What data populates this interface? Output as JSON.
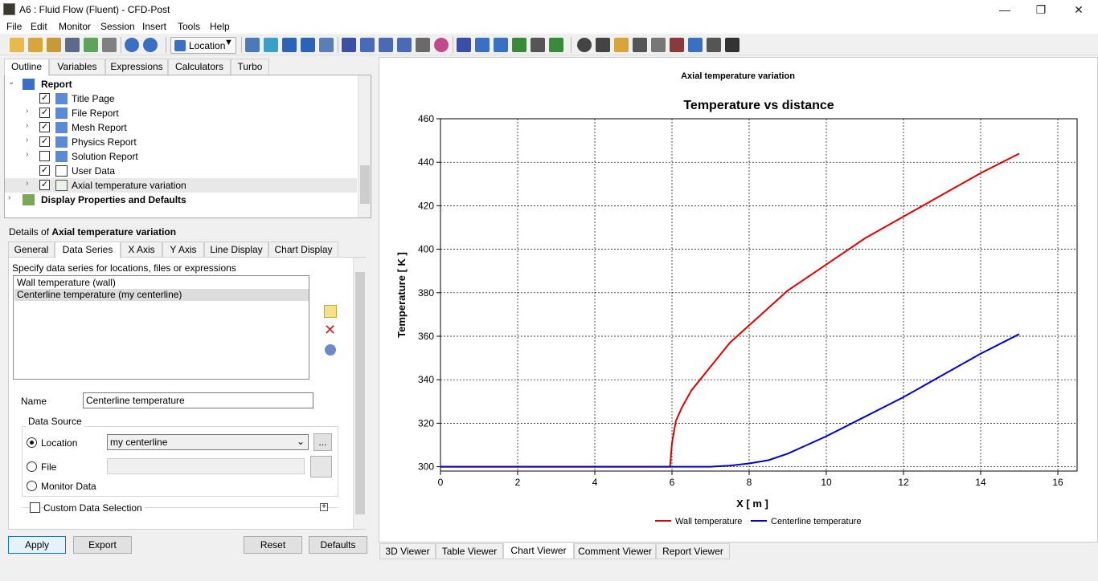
{
  "window": {
    "title": "A6 : Fluid Flow (Fluent) - CFD-Post",
    "min": "—",
    "max": "❐",
    "close": "✕"
  },
  "menu": [
    "File",
    "Edit",
    "Monitor",
    "Session",
    "Insert",
    "Tools",
    "Help"
  ],
  "toolbar": {
    "location_label": "Location",
    "location_dropdown": "▼"
  },
  "top_tabs": [
    "Outline",
    "Variables",
    "Expressions",
    "Calculators",
    "Turbo"
  ],
  "outline": {
    "root": "Report",
    "items": [
      {
        "label": "Title Page",
        "checked": true,
        "expandable": false
      },
      {
        "label": "File Report",
        "checked": true,
        "expandable": true
      },
      {
        "label": "Mesh Report",
        "checked": true,
        "expandable": true
      },
      {
        "label": "Physics Report",
        "checked": true,
        "expandable": true
      },
      {
        "label": "Solution Report",
        "checked": false,
        "expandable": true
      },
      {
        "label": "User Data",
        "checked": true,
        "expandable": false
      },
      {
        "label": "Axial temperature variation",
        "checked": true,
        "expandable": true
      }
    ],
    "second_root": "Display Properties and Defaults"
  },
  "details": {
    "prefix": "Details of ",
    "name": "Axial temperature variation"
  },
  "detail_tabs": [
    "General",
    "Data Series",
    "X Axis",
    "Y Axis",
    "Line Display",
    "Chart Display"
  ],
  "data_series": {
    "hint": "Specify data series for locations, files or expressions",
    "items": [
      "Wall temperature (wall)",
      "Centerline temperature (my centerline)"
    ],
    "selected_index": 1
  },
  "form": {
    "name_label": "Name",
    "name_value": "Centerline temperature",
    "data_source_label": "Data Source",
    "location_label": "Location",
    "location_value": "my centerline",
    "location_browse": "...",
    "file_label": "File",
    "monitor_label": "Monitor Data",
    "custom_label": "Custom Data Selection",
    "custom_expand": "+"
  },
  "buttons": {
    "apply": "Apply",
    "export": "Export",
    "reset": "Reset",
    "defaults": "Defaults"
  },
  "viewer_tabs": [
    "3D Viewer",
    "Table Viewer",
    "Chart Viewer",
    "Comment Viewer",
    "Report Viewer"
  ],
  "chart_data": {
    "type": "line",
    "header": "Axial temperature variation",
    "title": "Temperature vs distance",
    "xlabel": "X [ m ]",
    "ylabel": "Temperature [ K ]",
    "xlim": [
      0,
      16.5
    ],
    "ylim": [
      298,
      460
    ],
    "xticks": [
      0,
      2,
      4,
      6,
      8,
      10,
      12,
      14,
      16
    ],
    "yticks": [
      300,
      320,
      340,
      360,
      380,
      400,
      420,
      440,
      460
    ],
    "grid": true,
    "legend_position": "bottom",
    "series": [
      {
        "name": "Wall temperature",
        "color": "#e00000",
        "x": [
          0,
          5.95,
          6.0,
          6.1,
          6.25,
          6.5,
          7.0,
          7.5,
          8.0,
          9.0,
          10.0,
          11.0,
          12.0,
          13.0,
          14.0,
          15.0
        ],
        "y": [
          300,
          300,
          311,
          321,
          327,
          335,
          346,
          357,
          365,
          381,
          393,
          405,
          415,
          425,
          435,
          444
        ]
      },
      {
        "name": "Centerline temperature",
        "color": "#0000d0",
        "x": [
          0,
          7.0,
          7.5,
          8.0,
          8.5,
          9.0,
          9.5,
          10.0,
          11.0,
          12.0,
          13.0,
          14.0,
          15.0
        ],
        "y": [
          300,
          300,
          300.5,
          301.5,
          303,
          306,
          310,
          314,
          323,
          332,
          342,
          352,
          361
        ]
      }
    ]
  },
  "colors": {
    "accent": "#0078d7",
    "wall": "#e00000",
    "centerline": "#0000d0"
  }
}
